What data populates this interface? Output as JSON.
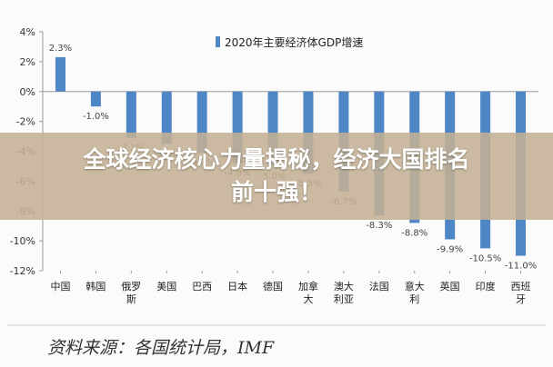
{
  "chart_data": {
    "type": "bar",
    "title": "2020年主要经济体GDP增速",
    "legend": [
      "2020年主要经济体GDP增速"
    ],
    "legend_position": "top-right",
    "categories": [
      "中国",
      "韩国",
      "俄罗斯",
      "美国",
      "巴西",
      "日本",
      "德国",
      "加拿大",
      "澳大利亚",
      "法国",
      "意大利",
      "英国",
      "印度",
      "西班牙"
    ],
    "category_lines": [
      [
        "中国"
      ],
      [
        "韩国"
      ],
      [
        "俄罗",
        "斯"
      ],
      [
        "美国"
      ],
      [
        "巴西"
      ],
      [
        "日本"
      ],
      [
        "德国"
      ],
      [
        "加拿",
        "大"
      ],
      [
        "澳大",
        "利亚"
      ],
      [
        "法国"
      ],
      [
        "意大",
        "利"
      ],
      [
        "英国"
      ],
      [
        "印度"
      ],
      [
        "西班",
        "牙"
      ]
    ],
    "values": [
      2.3,
      -1.0,
      -3.1,
      -3.5,
      -4.1,
      -4.8,
      -5.0,
      -5.5,
      -6.7,
      -8.3,
      -8.8,
      -9.9,
      -10.5,
      -11.0
    ],
    "labels": [
      "2.3%",
      "-1.0%",
      "-3.1%",
      "-3.5%",
      "-4.1%",
      "-4.8%",
      "-5.0%",
      "-5.5%",
      "-6.7%",
      "-8.3%",
      "-8.8%",
      "-9.9%",
      "-10.5%",
      "-11.0%"
    ],
    "yticks": [
      "4%",
      "2%",
      "0%",
      "-2%",
      "-4%",
      "-6%",
      "-8%",
      "-10%",
      "-12%"
    ],
    "ytick_values": [
      4,
      2,
      0,
      -2,
      -4,
      -6,
      -8,
      -10,
      -12
    ],
    "ylim": [
      -12,
      4
    ],
    "grid": false,
    "bar_color": "#4f86c6",
    "xlabel": "",
    "ylabel": ""
  },
  "overlay": {
    "line1": "全球经济核心力量揭秘，经济大国排名",
    "line2": "前十强！"
  },
  "source": "资料来源：各国统计局，IMF"
}
